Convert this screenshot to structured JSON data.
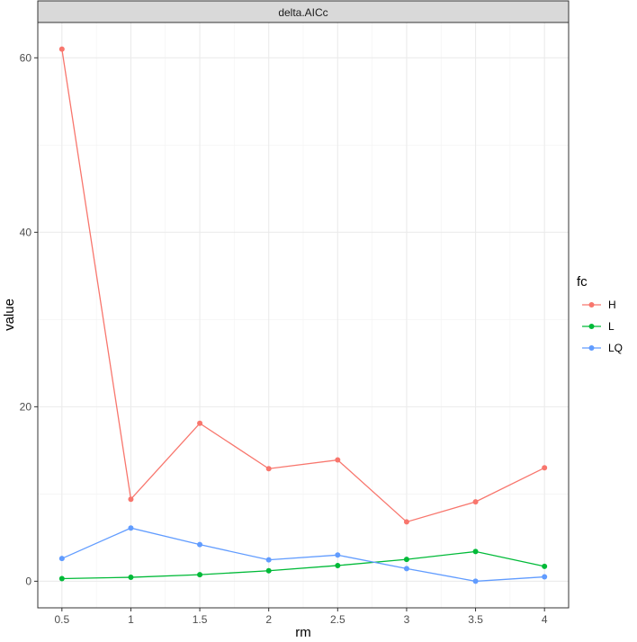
{
  "chart_data": {
    "type": "line",
    "facet_title": "delta.AICc",
    "xlabel": "rm",
    "ylabel": "value",
    "x": [
      0.5,
      1,
      1.5,
      2,
      2.5,
      3,
      3.5,
      4
    ],
    "x_tick_labels": [
      "0.5",
      "1",
      "1.5",
      "2",
      "2.5",
      "3",
      "3.5",
      "4"
    ],
    "xlim": [
      0.325,
      4.175
    ],
    "y_ticks": [
      0,
      20,
      40,
      60
    ],
    "y_tick_labels": [
      "0",
      "20",
      "40",
      "60"
    ],
    "ylim": [
      -3.05,
      64.05
    ],
    "grid": true,
    "legend": {
      "title": "fc",
      "placement": "right"
    },
    "series": [
      {
        "name": "H",
        "color": "#F8766D",
        "values": [
          61.0,
          9.4,
          18.1,
          12.9,
          13.9,
          6.8,
          9.1,
          13.0
        ]
      },
      {
        "name": "L",
        "color": "#00BA38",
        "values": [
          0.3,
          0.45,
          0.75,
          1.2,
          1.8,
          2.5,
          3.4,
          1.7
        ]
      },
      {
        "name": "LQ",
        "color": "#619CFF",
        "values": [
          2.6,
          6.1,
          4.2,
          2.45,
          3.0,
          1.45,
          0.0,
          0.5
        ]
      }
    ]
  }
}
